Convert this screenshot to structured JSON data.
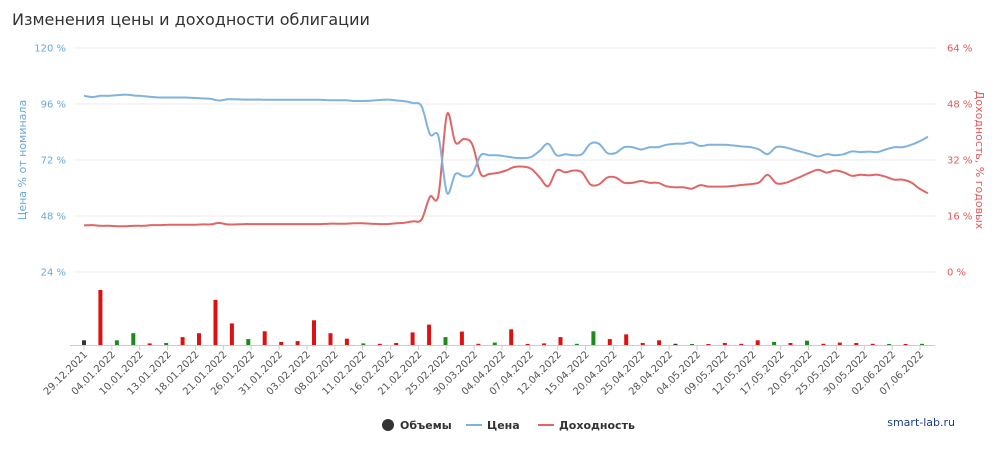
{
  "chart_title": "Изменения цены и доходности облигации",
  "credit": "smart-lab.ru",
  "colors": {
    "price": "#7fb3de",
    "yield": "#e06666",
    "volume_dark": "#333333",
    "volume_red": "#dd1111",
    "volume_green": "#1e8a1e",
    "grid": "#e8e8e8"
  },
  "chart_data": {
    "type": "line",
    "x_tick_labels": [
      "29.12.2021",
      "04.01.2022",
      "10.01.2022",
      "13.01.2022",
      "18.01.2022",
      "21.01.2022",
      "26.01.2022",
      "31.01.2022",
      "03.02.2022",
      "08.02.2022",
      "11.02.2022",
      "16.02.2022",
      "21.02.2022",
      "25.02.2022",
      "30.03.2022",
      "04.04.2022",
      "07.04.2022",
      "12.04.2022",
      "15.04.2022",
      "20.04.2022",
      "25.04.2022",
      "28.04.2022",
      "04.05.2022",
      "09.05.2022",
      "12.05.2022",
      "17.05.2022",
      "20.05.2022",
      "25.05.2022",
      "30.05.2022",
      "02.06.2022",
      "07.06.2022"
    ],
    "y_left": {
      "label": "Цена % от номинала",
      "range": [
        24,
        120
      ],
      "ticks": [
        24,
        48,
        72,
        96,
        120
      ],
      "tick_labels": [
        "24 %",
        "48 %",
        "72 %",
        "96 %",
        "120 %"
      ]
    },
    "y_right": {
      "label": "Доходность, % годовых",
      "range": [
        0,
        64
      ],
      "ticks": [
        0,
        16,
        32,
        48,
        64
      ],
      "tick_labels": [
        "0 %",
        "16 %",
        "32 %",
        "48 %",
        "64 %"
      ]
    },
    "grid": true,
    "legend_position": "bottom-center",
    "series": [
      {
        "name": "Цена",
        "axis": "left",
        "values": [
          99.5,
          99,
          99.5,
          99.5,
          99.8,
          100,
          99.6,
          99.4,
          99,
          98.8,
          98.8,
          98.8,
          98.8,
          98.6,
          98.4,
          98.2,
          97.5,
          98,
          98,
          97.9,
          97.9,
          97.9,
          97.8,
          97.8,
          97.8,
          97.8,
          97.8,
          97.8,
          97.8,
          97.6,
          97.6,
          97.6,
          97.3,
          97.3,
          97.4,
          97.7,
          97.9,
          97.5,
          97.2,
          96.4,
          95,
          83,
          82,
          58,
          66,
          65,
          66,
          74,
          74,
          74,
          73.5,
          73,
          72.8,
          73.3,
          76,
          79,
          74,
          74.5,
          74,
          74.5,
          79,
          79,
          75,
          75,
          77.5,
          77.5,
          76.5,
          77.5,
          77.5,
          78.5,
          79,
          79,
          79.5,
          78,
          78.5,
          78.5,
          78.5,
          78.2,
          77.8,
          77.5,
          76.5,
          74.5,
          77.5,
          77.5,
          76.5,
          75.5,
          74.5,
          73.5,
          74.5,
          74,
          74.5,
          75.7,
          75.4,
          75.6,
          75.4,
          76.5,
          77.5,
          77.5,
          78.5,
          80,
          82
        ]
      },
      {
        "name": "Доходность",
        "axis": "right",
        "values": [
          13.3,
          13.4,
          13.2,
          13.2,
          13.1,
          13.1,
          13.2,
          13.2,
          13.4,
          13.4,
          13.5,
          13.5,
          13.5,
          13.5,
          13.6,
          13.6,
          14.0,
          13.6,
          13.6,
          13.7,
          13.7,
          13.7,
          13.7,
          13.7,
          13.7,
          13.7,
          13.7,
          13.7,
          13.7,
          13.8,
          13.8,
          13.8,
          13.9,
          13.9,
          13.8,
          13.7,
          13.7,
          13.9,
          14.1,
          14.5,
          15.0,
          21.5,
          22,
          45,
          37,
          38,
          36.5,
          28,
          28,
          28.3,
          29,
          30,
          30.1,
          29.5,
          27,
          24.5,
          29,
          28.5,
          29,
          28.5,
          25,
          25,
          27,
          27,
          25.5,
          25.5,
          26,
          25.5,
          25.5,
          24.5,
          24.2,
          24.2,
          23.8,
          24.8,
          24.4,
          24.4,
          24.4,
          24.6,
          24.9,
          25.1,
          25.6,
          27.8,
          25.4,
          25.4,
          26.3,
          27.3,
          28.4,
          29.2,
          28.4,
          29,
          28.5,
          27.5,
          27.8,
          27.6,
          27.8,
          27.2,
          26.4,
          26.4,
          25.6,
          23.8,
          22.5
        ]
      },
      {
        "name": "Объемы",
        "type": "bar",
        "values": [
          {
            "v": 1.2,
            "c": "dark"
          },
          {
            "v": 14,
            "c": "red"
          },
          {
            "v": 1.2,
            "c": "green"
          },
          {
            "v": 3,
            "c": "green"
          },
          {
            "v": 0.4,
            "c": "red"
          },
          {
            "v": 0.5,
            "c": "green"
          },
          {
            "v": 2,
            "c": "red"
          },
          {
            "v": 3,
            "c": "red"
          },
          {
            "v": 11.5,
            "c": "red"
          },
          {
            "v": 5.5,
            "c": "red"
          },
          {
            "v": 1.5,
            "c": "green"
          },
          {
            "v": 3.5,
            "c": "red"
          },
          {
            "v": 0.8,
            "c": "red"
          },
          {
            "v": 1,
            "c": "red"
          },
          {
            "v": 6.3,
            "c": "red"
          },
          {
            "v": 3,
            "c": "red"
          },
          {
            "v": 1.6,
            "c": "red"
          },
          {
            "v": 0.4,
            "c": "green"
          },
          {
            "v": 0.3,
            "c": "red"
          },
          {
            "v": 0.5,
            "c": "red"
          },
          {
            "v": 3.2,
            "c": "red"
          },
          {
            "v": 5.2,
            "c": "red"
          },
          {
            "v": 2,
            "c": "green"
          },
          {
            "v": 3.4,
            "c": "red"
          },
          {
            "v": 0.3,
            "c": "red"
          },
          {
            "v": 0.6,
            "c": "green"
          },
          {
            "v": 4,
            "c": "red"
          },
          {
            "v": 0.2,
            "c": "red"
          },
          {
            "v": 0.4,
            "c": "red"
          },
          {
            "v": 2,
            "c": "red"
          },
          {
            "v": 0.3,
            "c": "green"
          },
          {
            "v": 3.5,
            "c": "green"
          },
          {
            "v": 1.5,
            "c": "red"
          },
          {
            "v": 2.7,
            "c": "red"
          },
          {
            "v": 0.5,
            "c": "red"
          },
          {
            "v": 1.2,
            "c": "red"
          },
          {
            "v": 0.3,
            "c": "dark"
          },
          {
            "v": 0.2,
            "c": "green"
          },
          {
            "v": 0.2,
            "c": "red"
          },
          {
            "v": 0.5,
            "c": "red"
          },
          {
            "v": 0.3,
            "c": "red"
          },
          {
            "v": 1.2,
            "c": "red"
          },
          {
            "v": 0.8,
            "c": "green"
          },
          {
            "v": 0.5,
            "c": "red"
          },
          {
            "v": 1.1,
            "c": "green"
          },
          {
            "v": 0.3,
            "c": "red"
          },
          {
            "v": 0.6,
            "c": "red"
          },
          {
            "v": 0.5,
            "c": "red"
          },
          {
            "v": 0.3,
            "c": "red"
          },
          {
            "v": 0.2,
            "c": "green"
          },
          {
            "v": 0.2,
            "c": "red"
          },
          {
            "v": 0.3,
            "c": "green"
          }
        ]
      }
    ],
    "legend": [
      {
        "label": "Объемы",
        "marker": "dot"
      },
      {
        "label": "Цена",
        "marker": "line"
      },
      {
        "label": "Доходность",
        "marker": "line"
      }
    ]
  }
}
